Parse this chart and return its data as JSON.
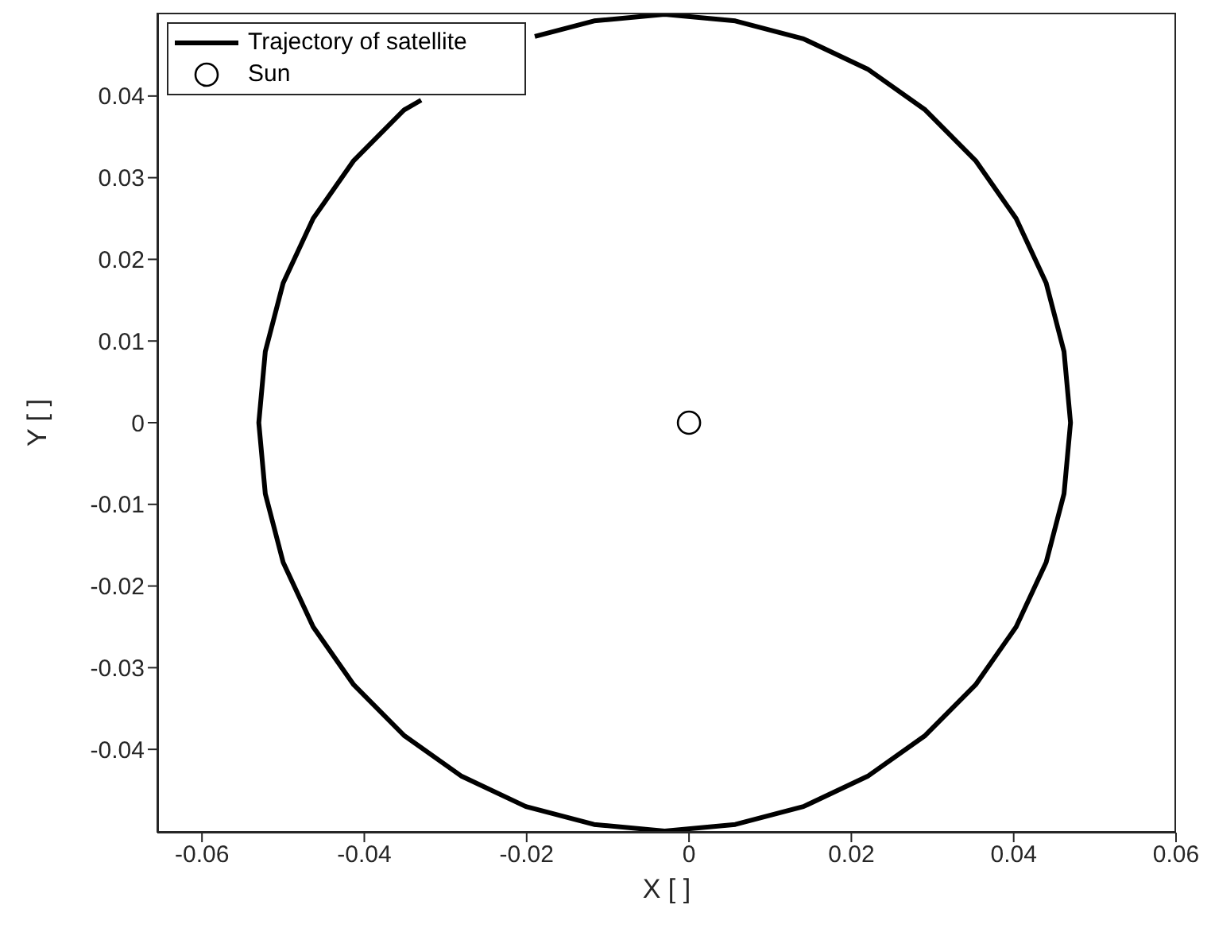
{
  "chart_data": {
    "type": "line",
    "xlabel": "X [ ]",
    "ylabel": "Y [ ]",
    "xlim": [
      -0.0655,
      0.06
    ],
    "ylim": [
      -0.0502,
      0.0502
    ],
    "xticks": [
      -0.06,
      -0.04,
      -0.02,
      0,
      0.02,
      0.04,
      0.06
    ],
    "yticks": [
      -0.04,
      -0.03,
      -0.02,
      -0.01,
      0,
      0.01,
      0.02,
      0.03,
      0.04
    ],
    "grid": false,
    "legend": "top left",
    "x": [
      -0.033,
      -0.0351,
      -0.0413,
      -0.0463,
      -0.05,
      -0.0522,
      -0.053,
      -0.0522,
      -0.05,
      -0.0463,
      -0.0413,
      -0.0351,
      -0.028,
      -0.0201,
      -0.0117,
      -0.003,
      0.0057,
      0.0141,
      0.022,
      0.0291,
      0.0353,
      0.0403,
      0.044,
      0.0462,
      0.047,
      0.0462,
      0.044,
      0.0403,
      0.0353,
      0.0291,
      0.022,
      0.0141,
      0.0057,
      -0.003,
      -0.0117,
      -0.019
    ],
    "series": [
      {
        "name": "Trajectory of satellite",
        "color": "#000000",
        "marker": "none",
        "values": [
          0.0395,
          0.0383,
          0.0321,
          0.025,
          0.0171,
          0.0087,
          0,
          -0.0087,
          -0.0171,
          -0.025,
          -0.0321,
          -0.0383,
          -0.0433,
          -0.047,
          -0.0492,
          -0.05,
          -0.0492,
          -0.047,
          -0.0433,
          -0.0383,
          -0.0321,
          -0.025,
          -0.0171,
          -0.0087,
          0,
          0.0087,
          0.0171,
          0.025,
          0.0321,
          0.0383,
          0.0433,
          0.047,
          0.0492,
          0.05,
          0.0492,
          0.0473
        ]
      },
      {
        "name": "Sun",
        "type": "scatter",
        "color": "#000000",
        "marker": "circle",
        "x": [
          0
        ],
        "values": [
          0
        ]
      }
    ]
  }
}
